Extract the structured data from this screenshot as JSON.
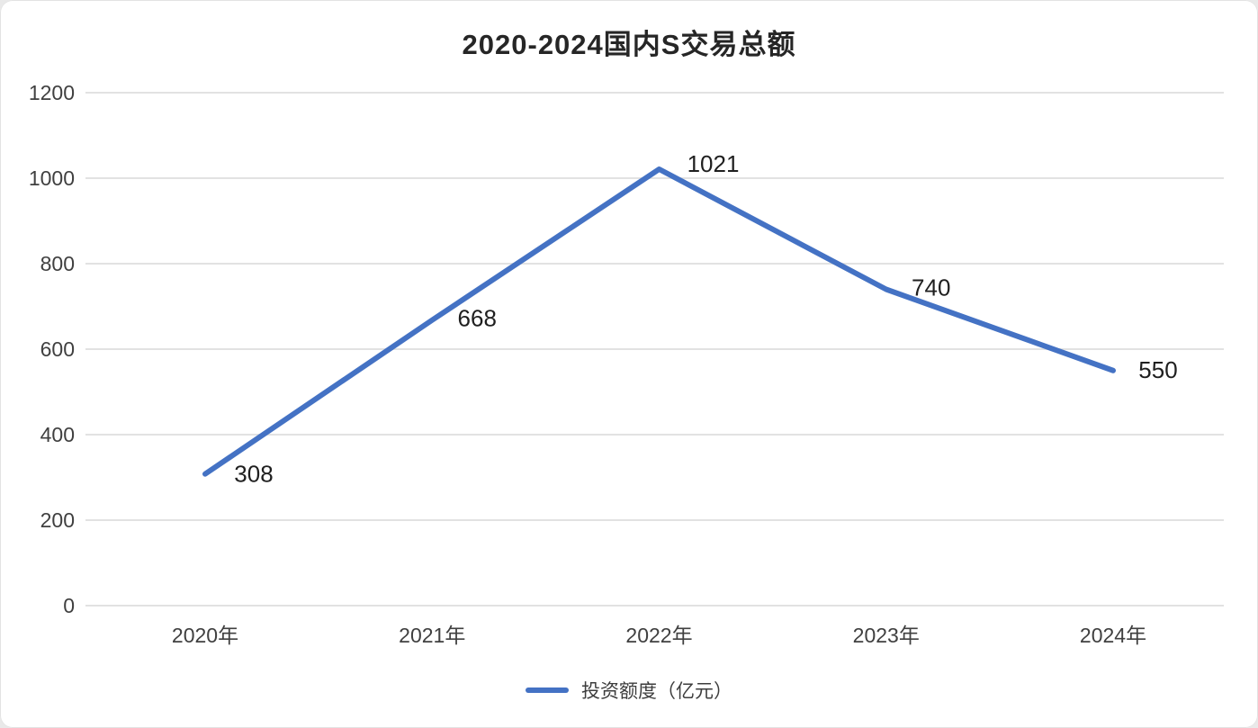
{
  "chart_data": {
    "type": "line",
    "title": "2020-2024国内S交易总额",
    "categories": [
      "2020年",
      "2021年",
      "2022年",
      "2023年",
      "2024年"
    ],
    "series": [
      {
        "name": "投资额度（亿元）",
        "values": [
          308,
          668,
          1021,
          740,
          550
        ]
      }
    ],
    "data_labels": [
      "308",
      "668",
      "1021",
      "740",
      "550"
    ],
    "yticks": [
      0,
      200,
      400,
      600,
      800,
      1000,
      1200
    ],
    "ylim": [
      0,
      1200
    ],
    "xlabel": "",
    "ylabel": "",
    "grid": "horizontal",
    "legend_position": "bottom",
    "line_color": "#4472c4",
    "grid_color": "#e2e2e2",
    "tick_color": "#404040",
    "label_color": "#1f1f1f"
  },
  "legend": {
    "label": "投资额度（亿元）"
  }
}
